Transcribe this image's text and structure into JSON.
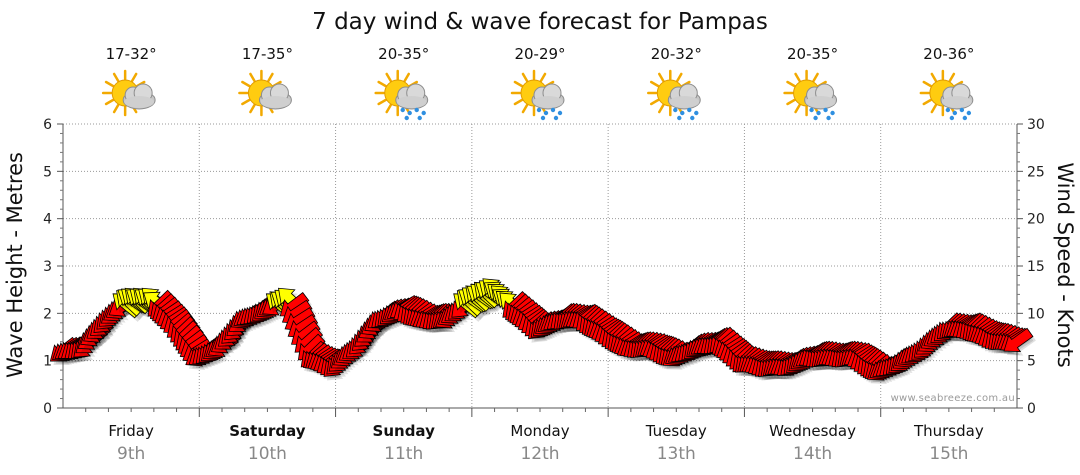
{
  "chart_data": {
    "type": "line",
    "title": "7 day wind & wave forecast for Pampas",
    "ylabel_left": "Wave Height - Metres",
    "ylabel_right": "Wind Speed - Knots",
    "ylim_left": [
      0,
      6
    ],
    "ylim_right": [
      0,
      30
    ],
    "yticks_left": [
      "0",
      "1",
      "2",
      "3",
      "4",
      "5",
      "6"
    ],
    "yticks_right": [
      "0",
      "5",
      "10",
      "15",
      "20",
      "25",
      "30"
    ],
    "credit": "www.seabreeze.com.au",
    "days": [
      {
        "day": "Friday",
        "date": "9th",
        "bold": false,
        "temp": "17-32°",
        "weather_icon": "sun-cloud-icon"
      },
      {
        "day": "Saturday",
        "date": "10th",
        "bold": true,
        "temp": "17-35°",
        "weather_icon": "sun-cloud-icon"
      },
      {
        "day": "Sunday",
        "date": "11th",
        "bold": true,
        "temp": "20-35°",
        "weather_icon": "sun-cloud-rain-icon"
      },
      {
        "day": "Monday",
        "date": "12th",
        "bold": false,
        "temp": "20-29°",
        "weather_icon": "sun-cloud-rain-icon"
      },
      {
        "day": "Tuesday",
        "date": "13th",
        "bold": false,
        "temp": "20-32°",
        "weather_icon": "sun-cloud-rain-icon"
      },
      {
        "day": "Wednesday",
        "date": "14th",
        "bold": false,
        "temp": "20-35°",
        "weather_icon": "sun-cloud-rain-icon"
      },
      {
        "day": "Thursday",
        "date": "15th",
        "bold": false,
        "temp": "20-36°",
        "weather_icon": "sun-cloud-rain-icon"
      }
    ],
    "wind_series": {
      "name": "Wind Speed - Knots",
      "x_days": [
        0.0,
        0.167,
        0.333,
        0.5,
        0.667,
        0.833,
        1.0,
        1.167,
        1.333,
        1.5,
        1.667,
        1.833,
        2.0,
        2.167,
        2.333,
        2.5,
        2.667,
        2.833,
        3.0,
        3.167,
        3.333,
        3.5,
        3.667,
        3.833,
        4.0,
        4.167,
        4.333,
        4.5,
        4.667,
        4.833,
        5.0,
        5.167,
        5.333,
        5.5,
        5.667,
        5.833,
        6.0,
        6.167,
        6.333,
        6.5,
        6.667,
        6.833,
        7.0
      ],
      "knots": [
        6,
        6.5,
        9.5,
        11.5,
        11.5,
        9,
        5.5,
        6.5,
        9.5,
        10.5,
        11.5,
        5.5,
        4.5,
        6.5,
        9.5,
        10.5,
        9.5,
        9.5,
        11.5,
        12.5,
        10.5,
        8.5,
        9.5,
        9.5,
        8,
        6.5,
        6.5,
        5.5,
        6.5,
        7,
        5,
        4.5,
        4.5,
        5.5,
        5.5,
        5.5,
        4,
        5,
        6.5,
        8.5,
        8.5,
        7.5,
        7
      ]
    },
    "strong_wind_color": "#ffff00",
    "wind_color": "#ff0000",
    "wind_outline_color": "#000000"
  }
}
